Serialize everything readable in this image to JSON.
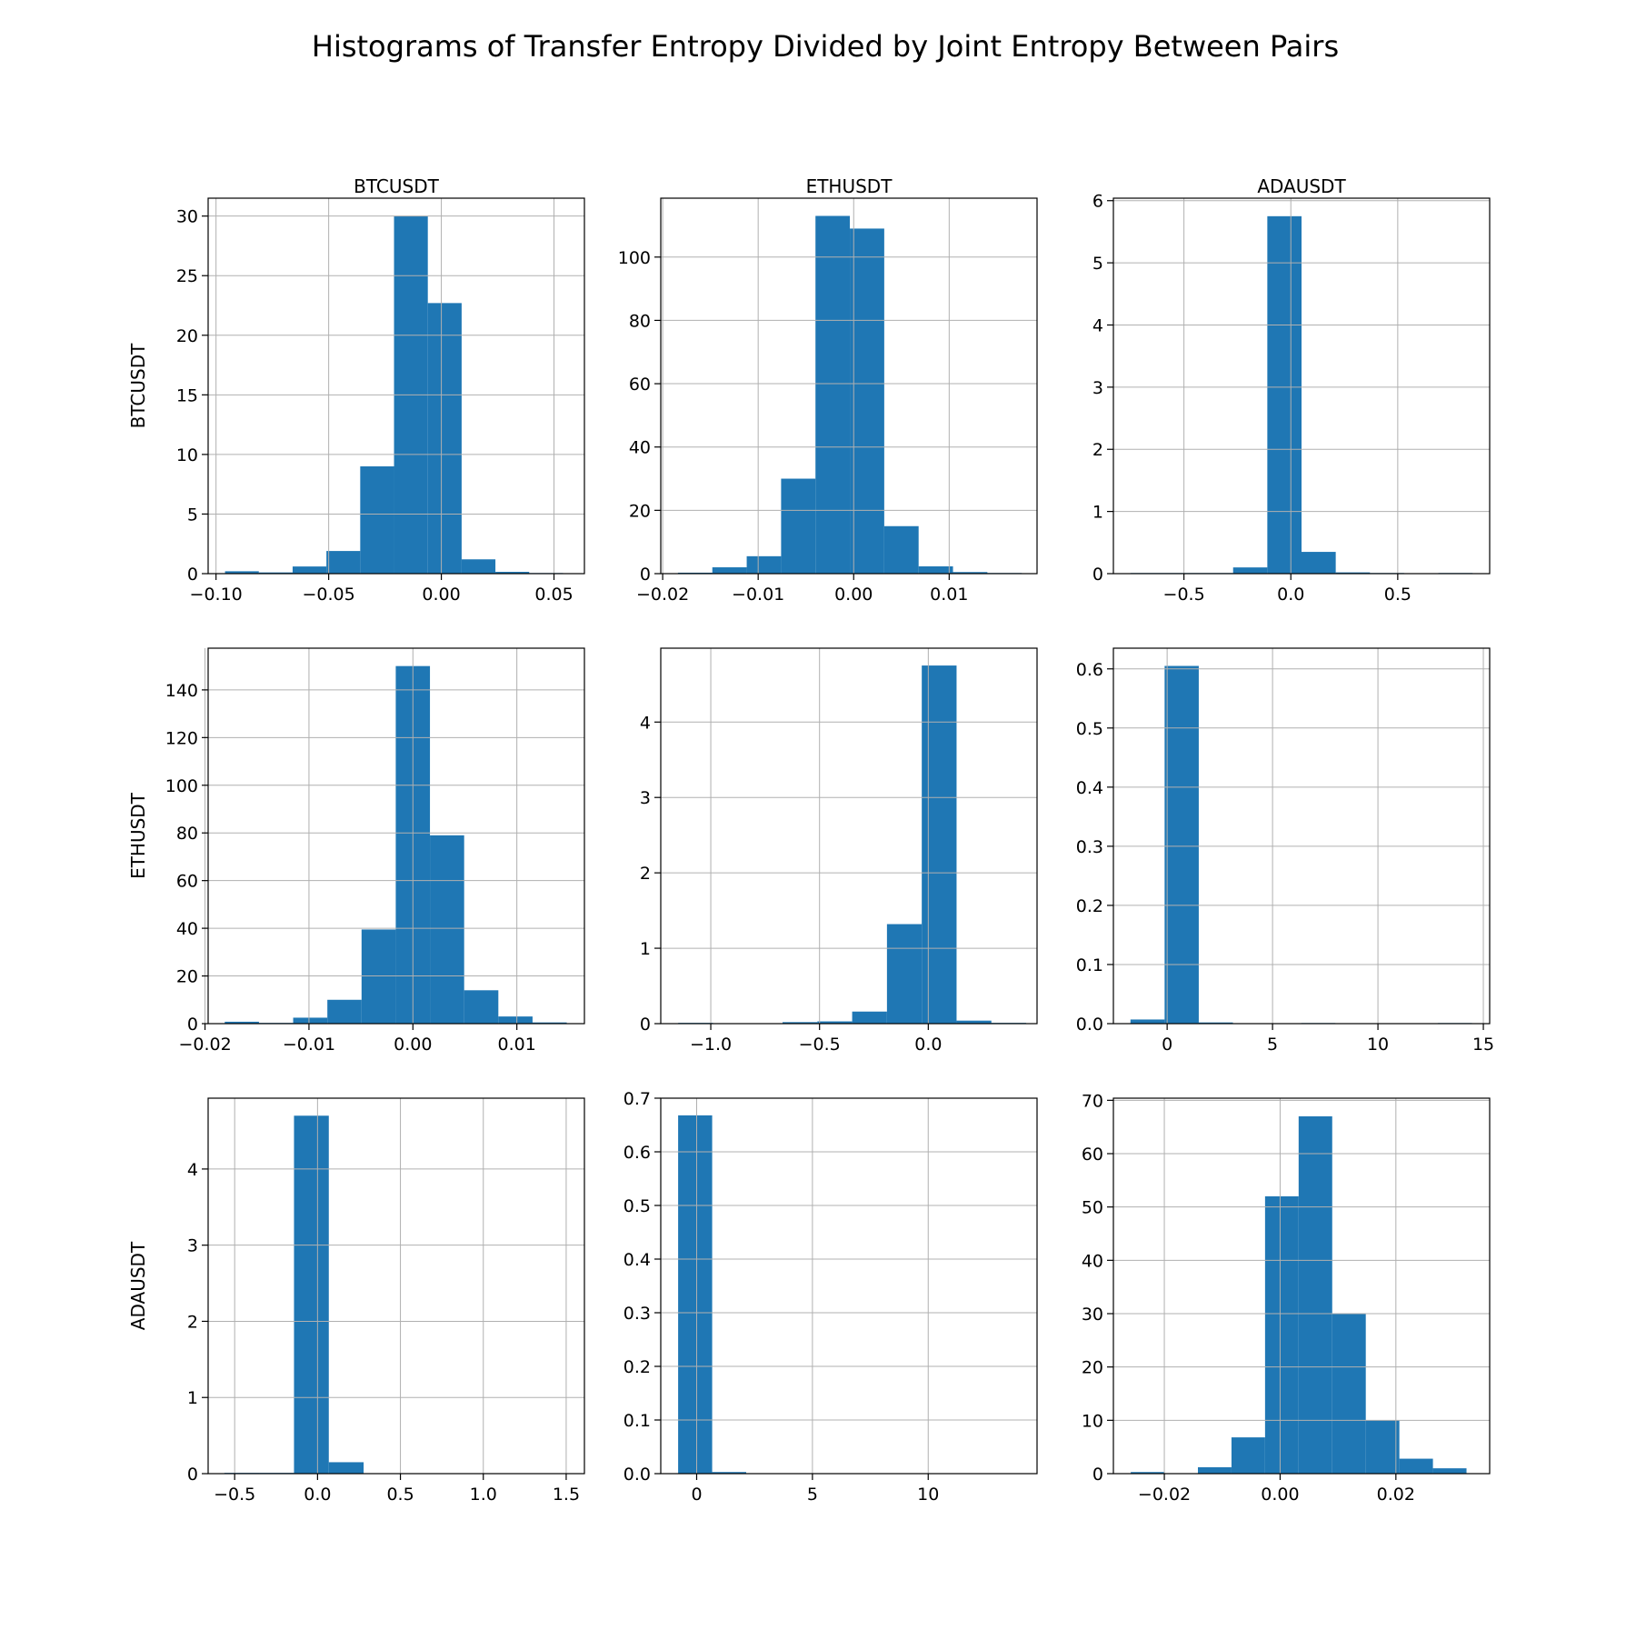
{
  "figure": {
    "title": "Histograms of Transfer Entropy Divided by Joint Entropy Between Pairs",
    "bar_color": "#1f77b4",
    "grid_color": "#b0b0b0"
  },
  "chart_data": [
    {
      "type": "bar",
      "row": 0,
      "col": 0,
      "title": "BTCUSDT",
      "xlabel": "",
      "ylabel": "BTCUSDT",
      "xlim": [
        -0.1035,
        0.0635
      ],
      "ylim": [
        0,
        31.5
      ],
      "grid": true,
      "xticks": [
        -0.1,
        -0.05,
        0.0,
        0.05
      ],
      "xtick_labels": [
        "−0.10",
        "−0.05",
        "0.00",
        "0.05"
      ],
      "yticks": [
        0,
        5,
        10,
        15,
        20,
        25,
        30
      ],
      "ytick_labels": [
        "0",
        "5",
        "10",
        "15",
        "20",
        "25",
        "30"
      ],
      "bin_edges": [
        -0.096,
        -0.081,
        -0.066,
        -0.051,
        -0.036,
        -0.021,
        -0.006,
        0.009,
        0.024,
        0.039,
        0.054
      ],
      "values": [
        0.2,
        0.1,
        0.6,
        1.9,
        9.0,
        30.0,
        22.7,
        1.2,
        0.15,
        0.05
      ]
    },
    {
      "type": "bar",
      "row": 0,
      "col": 1,
      "title": "ETHUSDT",
      "xlabel": "",
      "ylabel": "",
      "xlim": [
        -0.0202,
        0.0192
      ],
      "ylim": [
        0,
        118.6
      ],
      "grid": true,
      "xticks": [
        -0.02,
        -0.01,
        0.0,
        0.01
      ],
      "xtick_labels": [
        "−0.02",
        "−0.01",
        "0.00",
        "0.01"
      ],
      "yticks": [
        0,
        20,
        40,
        60,
        80,
        100
      ],
      "ytick_labels": [
        "0",
        "20",
        "40",
        "60",
        "80",
        "100"
      ],
      "bin_edges": [
        -0.0184,
        -0.0148,
        -0.0112,
        -0.0076,
        -0.004,
        -0.0004,
        0.0032,
        0.0068,
        0.0104,
        0.014,
        0.0176
      ],
      "values": [
        0.3,
        2.0,
        5.5,
        30.0,
        113.0,
        109.0,
        15.0,
        2.3,
        0.5,
        0.2
      ]
    },
    {
      "type": "bar",
      "row": 0,
      "col": 2,
      "title": "ADAUSDT",
      "xlabel": "",
      "ylabel": "",
      "xlim": [
        -0.83,
        0.93
      ],
      "ylim": [
        0,
        6.04
      ],
      "grid": true,
      "xticks": [
        -0.5,
        0.0,
        0.5
      ],
      "xtick_labels": [
        "−0.5",
        "0.0",
        "0.5"
      ],
      "yticks": [
        0,
        1,
        2,
        3,
        4,
        5,
        6
      ],
      "ytick_labels": [
        "0",
        "1",
        "2",
        "3",
        "4",
        "5",
        "6"
      ],
      "bin_edges": [
        -0.75,
        -0.59,
        -0.43,
        -0.27,
        -0.11,
        0.05,
        0.21,
        0.37,
        0.53,
        0.69,
        0.85
      ],
      "values": [
        0.01,
        0.01,
        0.01,
        0.1,
        5.75,
        0.35,
        0.02,
        0.01,
        0.005,
        0.01
      ]
    },
    {
      "type": "bar",
      "row": 1,
      "col": 0,
      "title": "",
      "xlabel": "",
      "ylabel": "ETHUSDT",
      "xlim": [
        -0.0197,
        0.0165
      ],
      "ylim": [
        0,
        157.5
      ],
      "grid": true,
      "xticks": [
        -0.02,
        -0.01,
        0.0,
        0.01
      ],
      "xtick_labels": [
        "−0.02",
        "−0.01",
        "0.00",
        "0.01"
      ],
      "yticks": [
        0,
        20,
        40,
        60,
        80,
        100,
        120,
        140
      ],
      "ytick_labels": [
        "0",
        "20",
        "40",
        "60",
        "80",
        "100",
        "120",
        "140"
      ],
      "bin_edges": [
        -0.0181,
        -0.01481,
        -0.01152,
        -0.00823,
        -0.00494,
        -0.00165,
        0.00164,
        0.00493,
        0.00822,
        0.01151,
        0.0148
      ],
      "values": [
        0.8,
        0.3,
        2.5,
        10.0,
        39.5,
        150.0,
        79.0,
        14.0,
        3.0,
        0.5
      ]
    },
    {
      "type": "bar",
      "row": 1,
      "col": 1,
      "title": "",
      "xlabel": "",
      "ylabel": "",
      "xlim": [
        -1.23,
        0.5
      ],
      "ylim": [
        0,
        4.98
      ],
      "grid": true,
      "xticks": [
        -1.0,
        -0.5,
        0.0
      ],
      "xtick_labels": [
        "−1.0",
        "−0.5",
        "0.0"
      ],
      "yticks": [
        0,
        1,
        2,
        3,
        4
      ],
      "ytick_labels": [
        "0",
        "1",
        "2",
        "3",
        "4"
      ],
      "bin_edges": [
        -1.15,
        -0.99,
        -0.83,
        -0.67,
        -0.51,
        -0.35,
        -0.19,
        -0.03,
        0.13,
        0.29,
        0.45
      ],
      "values": [
        0.01,
        0.005,
        0.005,
        0.02,
        0.03,
        0.16,
        1.32,
        4.75,
        0.04,
        0.01
      ]
    },
    {
      "type": "bar",
      "row": 1,
      "col": 2,
      "title": "",
      "xlabel": "",
      "ylabel": "",
      "xlim": [
        -2.55,
        15.3
      ],
      "ylim": [
        0,
        0.635
      ],
      "grid": true,
      "xticks": [
        0,
        5,
        10,
        15
      ],
      "xtick_labels": [
        "0",
        "5",
        "10",
        "15"
      ],
      "yticks": [
        0,
        0.1,
        0.2,
        0.3,
        0.4,
        0.5,
        0.6
      ],
      "ytick_labels": [
        "0.0",
        "0.1",
        "0.2",
        "0.3",
        "0.4",
        "0.5",
        "0.6"
      ],
      "bin_edges": [
        -1.74,
        -0.12,
        1.5,
        3.12,
        4.74,
        6.36,
        7.98,
        9.6,
        11.22,
        12.84,
        14.46
      ],
      "values": [
        0.007,
        0.605,
        0.002,
        0.0005,
        0.0005,
        0.001,
        0.0005,
        0.0005,
        0.0005,
        0.001
      ]
    },
    {
      "type": "bar",
      "row": 2,
      "col": 0,
      "title": "",
      "xlabel": "",
      "ylabel": "ADAUSDT",
      "xlim": [
        -0.66,
        1.61
      ],
      "ylim": [
        0,
        4.93
      ],
      "grid": true,
      "xticks": [
        -0.5,
        0.0,
        0.5,
        1.0,
        1.5
      ],
      "xtick_labels": [
        "−0.5",
        "0.0",
        "0.5",
        "1.0",
        "1.5"
      ],
      "yticks": [
        0,
        1,
        2,
        3,
        4
      ],
      "ytick_labels": [
        "0",
        "1",
        "2",
        "3",
        "4"
      ],
      "bin_edges": [
        -0.562,
        -0.352,
        -0.142,
        0.068,
        0.278,
        0.488,
        0.698,
        0.908,
        1.118,
        1.328,
        1.538
      ],
      "values": [
        0.01,
        0.01,
        4.7,
        0.15,
        0.005,
        0.0,
        0.0,
        0.0,
        0.0,
        0.005
      ]
    },
    {
      "type": "bar",
      "row": 2,
      "col": 1,
      "title": "",
      "xlabel": "",
      "ylabel": "",
      "xlim": [
        -1.55,
        14.7
      ],
      "ylim": [
        0,
        0.7
      ],
      "grid": true,
      "xticks": [
        0,
        5,
        10
      ],
      "xtick_labels": [
        "0",
        "5",
        "10"
      ],
      "yticks": [
        0,
        0.1,
        0.2,
        0.3,
        0.4,
        0.5,
        0.6,
        0.7
      ],
      "ytick_labels": [
        "0.0",
        "0.1",
        "0.2",
        "0.3",
        "0.4",
        "0.5",
        "0.6",
        "0.7"
      ],
      "bin_edges": [
        -0.8,
        0.67,
        2.14,
        3.61,
        5.08,
        6.55,
        8.02,
        9.49,
        10.96,
        12.43,
        13.9
      ],
      "values": [
        0.668,
        0.003,
        0.0005,
        0.0003,
        0.0002,
        0.0002,
        0.0002,
        0.0002,
        0.0002,
        0.0002
      ]
    },
    {
      "type": "bar",
      "row": 2,
      "col": 2,
      "title": "",
      "xlabel": "",
      "ylabel": "",
      "xlim": [
        -0.0288,
        0.0362
      ],
      "ylim": [
        0,
        70.4
      ],
      "grid": true,
      "xticks": [
        -0.02,
        0.0,
        0.02
      ],
      "xtick_labels": [
        "−0.02",
        "0.00",
        "0.02"
      ],
      "yticks": [
        0,
        10,
        20,
        30,
        40,
        50,
        60,
        70
      ],
      "ytick_labels": [
        "0",
        "10",
        "20",
        "30",
        "40",
        "50",
        "60",
        "70"
      ],
      "bin_edges": [
        -0.0258,
        -0.02,
        -0.0142,
        -0.0084,
        -0.0026,
        0.0032,
        0.009,
        0.0148,
        0.0206,
        0.0264,
        0.0322
      ],
      "values": [
        0.3,
        0.0,
        1.2,
        6.8,
        52.0,
        67.0,
        30.0,
        10.0,
        2.8,
        1.0
      ]
    }
  ]
}
